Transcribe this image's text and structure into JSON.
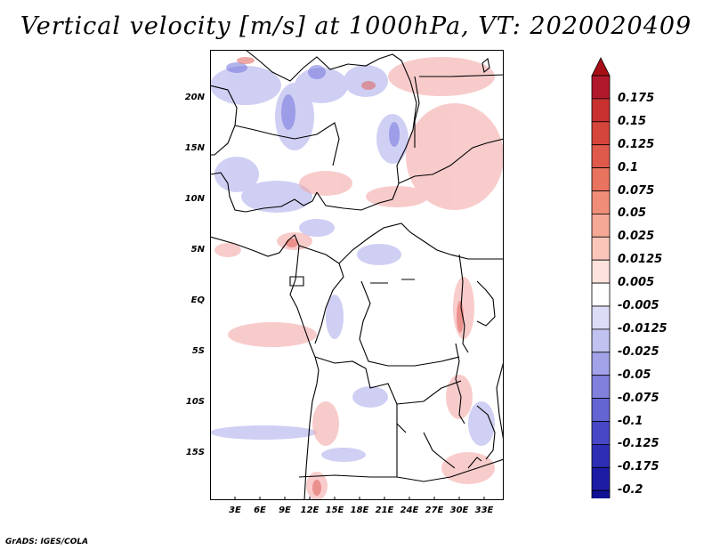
{
  "title": "Vertical velocity [m/s] at 1000hPa, VT: 2020020409",
  "credit": "GrADS: IGES/COLA",
  "axes": {
    "lat_labels": [
      "20N",
      "15N",
      "10N",
      "5N",
      "EQ",
      "5S",
      "10S",
      "15S"
    ],
    "lon_labels": [
      "3E",
      "6E",
      "9E",
      "12E",
      "15E",
      "18E",
      "21E",
      "24E",
      "27E",
      "30E",
      "33E"
    ]
  },
  "colorbar": {
    "labels": [
      "0.175",
      "0.15",
      "0.125",
      "0.1",
      "0.075",
      "0.05",
      "0.025",
      "0.0125",
      "0.005",
      "-0.005",
      "-0.0125",
      "-0.025",
      "-0.05",
      "-0.075",
      "-0.1",
      "-0.125",
      "-0.175",
      "-0.2"
    ],
    "colors": [
      "#b2182b",
      "#c8312f",
      "#d6453c",
      "#e05a4c",
      "#e8735f",
      "#f08d78",
      "#f5a896",
      "#f9c6b9",
      "#fde3dc",
      "#ffffff",
      "#dcdcf7",
      "#c2c2f1",
      "#a2a2e8",
      "#8080dd",
      "#6464d2",
      "#4848c6",
      "#2e2eb4",
      "#1c1ca4",
      "#121296"
    ],
    "top_arrow_color": "#a50f15",
    "bottom_arrow_color": "#0c0c8a"
  }
}
